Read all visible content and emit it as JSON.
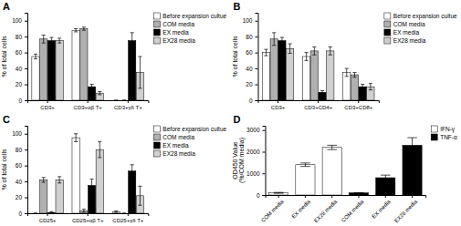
{
  "chart_data": [
    {
      "type": "bar",
      "title": "A",
      "ylabel": "% of total cells",
      "ylim": [
        0,
        110
      ],
      "yticks": [
        0,
        20,
        40,
        60,
        80,
        100
      ],
      "categories": [
        "CD3+",
        "CD3+αβ T+",
        "CD3+γδ T+"
      ],
      "series": [
        {
          "name": "Before expansion cultue",
          "color": "white",
          "values": [
            55,
            88,
            0
          ],
          "errors": [
            3,
            2,
            0
          ]
        },
        {
          "name": "COM media",
          "color": "#b0b0b0",
          "values": [
            77,
            90,
            0
          ],
          "errors": [
            5,
            2,
            0
          ]
        },
        {
          "name": "EX media",
          "color": "black",
          "values": [
            75,
            17,
            75
          ],
          "errors": [
            4,
            3,
            10
          ]
        },
        {
          "name": "EX28 media",
          "color": "#d0d0d0",
          "values": [
            75,
            9,
            35
          ],
          "errors": [
            3,
            2,
            20
          ]
        }
      ],
      "legend": "upper right"
    },
    {
      "type": "bar",
      "title": "B",
      "ylabel": "% of total cells",
      "ylim": [
        0,
        110
      ],
      "yticks": [
        0,
        20,
        40,
        60,
        80,
        100
      ],
      "categories": [
        "CD3+",
        "CD3+CD4+",
        "CD3+CD8+"
      ],
      "series": [
        {
          "name": "Before expansion cultue",
          "color": "white",
          "values": [
            60,
            55,
            35
          ],
          "errors": [
            4,
            5,
            5
          ]
        },
        {
          "name": "COM media",
          "color": "#b0b0b0",
          "values": [
            77,
            62,
            32
          ],
          "errors": [
            8,
            5,
            3
          ]
        },
        {
          "name": "EX media",
          "color": "black",
          "values": [
            75,
            10,
            17
          ],
          "errors": [
            4,
            2,
            3
          ]
        },
        {
          "name": "EX28 media",
          "color": "#d0d0d0",
          "values": [
            65,
            62,
            17
          ],
          "errors": [
            6,
            5,
            4
          ]
        }
      ],
      "legend": "upper right"
    },
    {
      "type": "bar",
      "title": "C",
      "ylabel": "% of total cells",
      "ylim": [
        0,
        110
      ],
      "yticks": [
        0,
        20,
        40,
        60,
        80,
        100
      ],
      "categories": [
        "CD25+",
        "CD25+αβ T+",
        "CD25+γδ T+"
      ],
      "series": [
        {
          "name": "Before expansion cultue",
          "color": "white",
          "values": [
            0,
            95,
            2
          ],
          "errors": [
            0,
            5,
            1
          ]
        },
        {
          "name": "COM media",
          "color": "#b0b0b0",
          "values": [
            42,
            3,
            0
          ],
          "errors": [
            3,
            2,
            0
          ]
        },
        {
          "name": "EX media",
          "color": "black",
          "values": [
            1,
            35,
            53
          ],
          "errors": [
            1,
            8,
            8
          ]
        },
        {
          "name": "EX28 media",
          "color": "#d0d0d0",
          "values": [
            42,
            80,
            22
          ],
          "errors": [
            4,
            10,
            12
          ]
        }
      ],
      "legend": "upper right"
    },
    {
      "type": "bar",
      "title": "D",
      "ylabel": "OD450 Value\n(%/COM media)",
      "ylim": [
        0,
        3200
      ],
      "yticks": [
        0,
        1000,
        2000,
        3000
      ],
      "categories": [
        "COM media",
        "EX media",
        "EX28 media",
        "COM media",
        "EX media",
        "EX28 media"
      ],
      "series": [
        {
          "name": "IFN-γ",
          "color": "white",
          "values": [
            100,
            1400,
            2200,
            null,
            null,
            null
          ],
          "errors": [
            20,
            80,
            100,
            null,
            null,
            null
          ]
        },
        {
          "name": "TNF-α",
          "color": "black",
          "values": [
            null,
            null,
            null,
            100,
            800,
            2300
          ],
          "errors": [
            null,
            null,
            null,
            10,
            120,
            350
          ]
        }
      ],
      "legend": "upper right"
    }
  ]
}
